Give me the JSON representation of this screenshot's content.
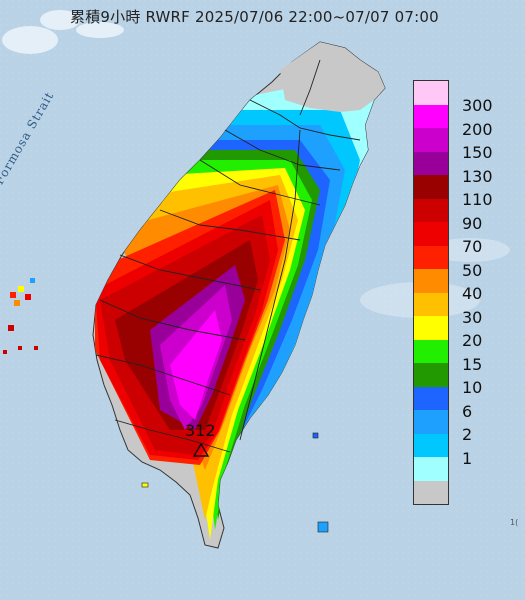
{
  "title": "累積9小時 RWRF 2025/07/06 22:00~07/07 07:00",
  "strait_label": "Formosa Strait",
  "peak_label": "312",
  "corner_label": "1(",
  "legend": {
    "colors": [
      "#ffc8f5",
      "#ff00ff",
      "#cc00cc",
      "#990099",
      "#990000",
      "#cc0000",
      "#ee0000",
      "#ff2000",
      "#ff8c00",
      "#ffc000",
      "#ffff00",
      "#22ee00",
      "#229900",
      "#1e64ff",
      "#1ea0ff",
      "#00c8ff",
      "#a0ffff",
      "#c8c8c8"
    ],
    "labels": [
      "300",
      "200",
      "150",
      "130",
      "110",
      "90",
      "70",
      "50",
      "40",
      "30",
      "20",
      "15",
      "10",
      "6",
      "2",
      "1"
    ]
  }
}
